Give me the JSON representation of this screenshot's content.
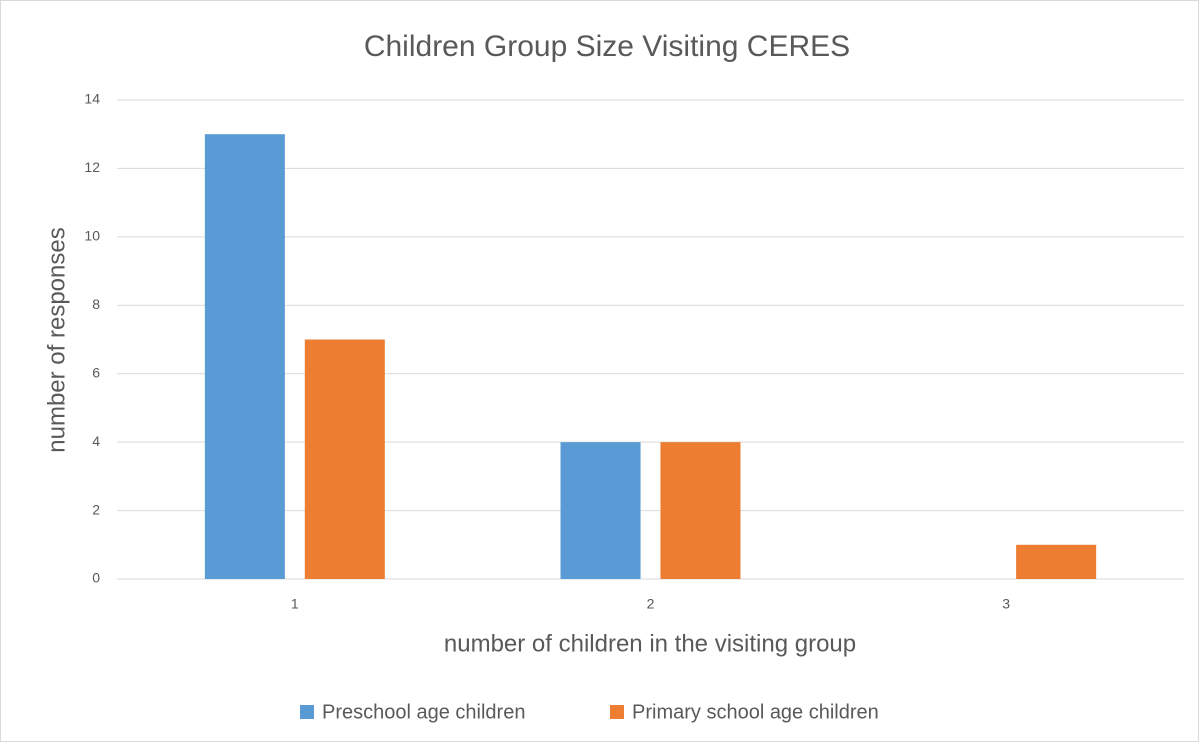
{
  "chart_data": {
    "type": "bar",
    "title": "Children Group Size Visiting CERES",
    "x_label": "number of children in the visiting group",
    "y_label": "number of responses",
    "categories": [
      "1",
      "2",
      "3"
    ],
    "series": [
      {
        "name": "Preschool age children",
        "color": "#5b9bd5",
        "values": [
          13,
          4,
          0
        ]
      },
      {
        "name": "Primary school age children",
        "color": "#ed7d31",
        "values": [
          7,
          4,
          1
        ]
      }
    ],
    "ylim": [
      0,
      14
    ],
    "yticks": [
      0,
      2,
      4,
      6,
      8,
      10,
      12,
      14
    ],
    "grid": true,
    "legend": "bottom"
  }
}
